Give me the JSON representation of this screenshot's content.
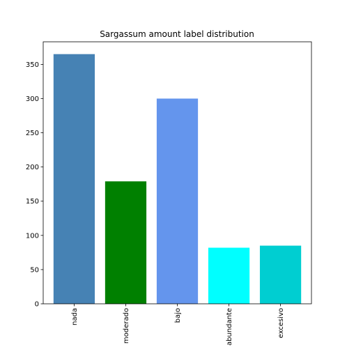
{
  "chart_data": {
    "type": "bar",
    "title": "Sargassum amount label distribution",
    "xlabel": "",
    "ylabel": "",
    "categories": [
      "nada",
      "moderado",
      "bajo",
      "abundante",
      "excesivo"
    ],
    "values": [
      365,
      179,
      300,
      82,
      85
    ],
    "colors": [
      "#4682b4",
      "#008000",
      "#6495ed",
      "#00ffff",
      "#00ced1"
    ],
    "ylim": [
      0,
      383
    ],
    "yticks": [
      0,
      50,
      100,
      150,
      200,
      250,
      300,
      350
    ],
    "grid": false,
    "legend": "none"
  }
}
